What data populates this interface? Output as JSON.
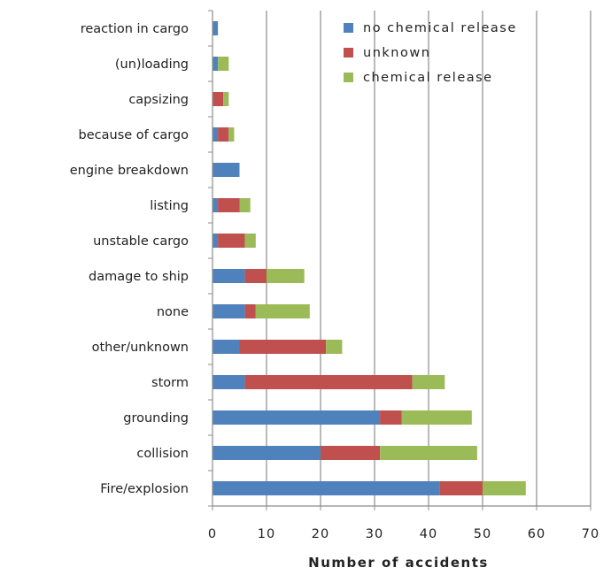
{
  "chart_data": {
    "type": "bar",
    "orientation": "horizontal",
    "stacked": true,
    "categories": [
      "reaction in cargo",
      "(un)loading",
      "capsizing",
      "because of cargo",
      "engine breakdown",
      "listing",
      "unstable cargo",
      "damage to ship",
      "none",
      "other/unknown",
      "storm",
      "grounding",
      "collision",
      "Fire/explosion"
    ],
    "series": [
      {
        "name": "no chemical release",
        "color": "#4f81bd",
        "values": [
          1,
          1,
          0,
          1,
          5,
          1,
          1,
          6,
          6,
          5,
          6,
          31,
          20,
          42
        ]
      },
      {
        "name": "unknown",
        "color": "#c0504d",
        "values": [
          0,
          0,
          2,
          2,
          0,
          4,
          5,
          4,
          2,
          16,
          31,
          4,
          11,
          8
        ]
      },
      {
        "name": "chemical release",
        "color": "#9bbb59",
        "values": [
          0,
          2,
          1,
          1,
          0,
          2,
          2,
          7,
          10,
          3,
          6,
          13,
          18,
          8
        ]
      }
    ],
    "xlabel": "Number of accidents",
    "ylabel": "",
    "title": "",
    "xlim": [
      0,
      70
    ],
    "xticks": [
      0,
      10,
      20,
      30,
      40,
      50,
      60,
      70
    ],
    "grid": true,
    "legend": "top-right"
  }
}
